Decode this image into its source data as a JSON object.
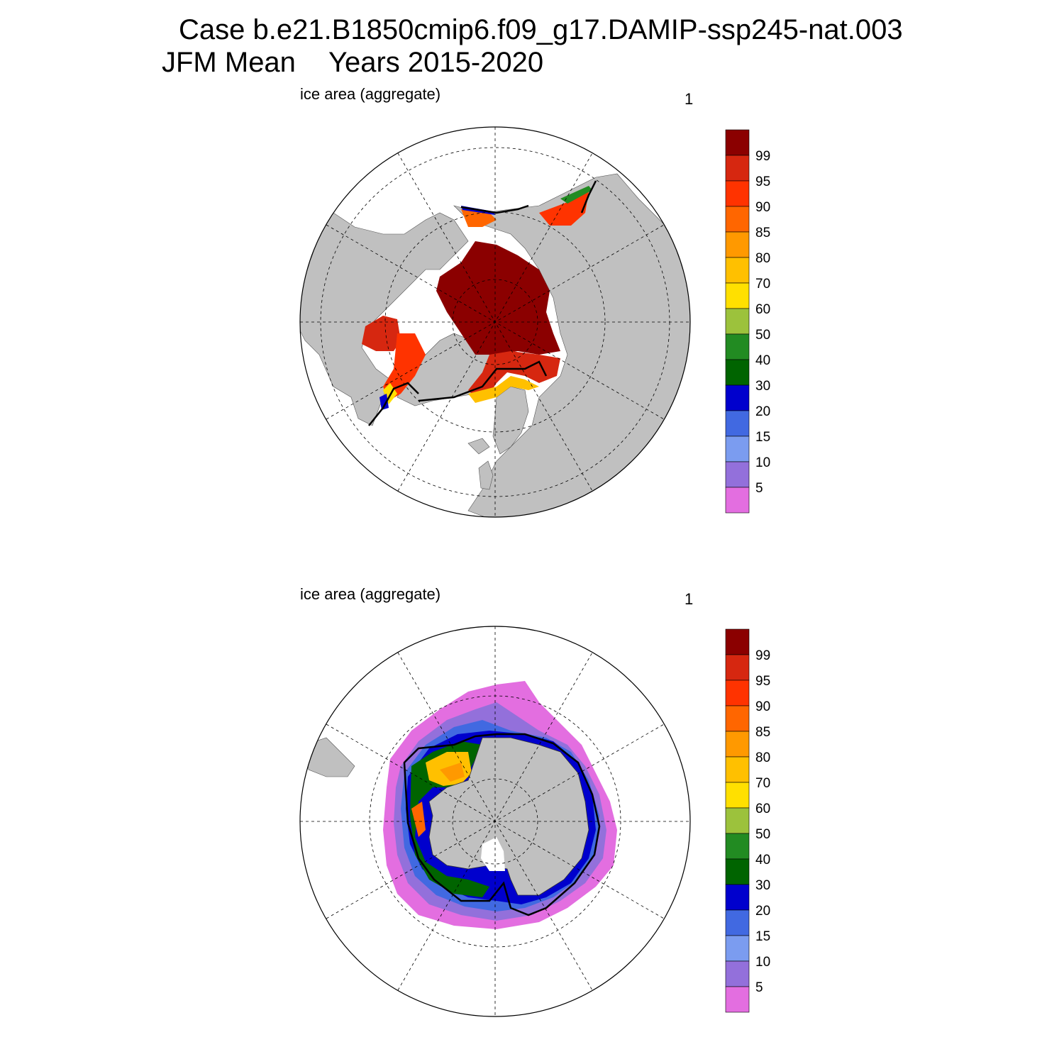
{
  "header": {
    "line1": "Case b.e21.B1850cmip6.f09_g17.DAMIP-ssp245-nat.003",
    "line2_period": "JFM Mean",
    "line2_years": "Years 2015-2020"
  },
  "panels": [
    {
      "id": "north",
      "variable_label": "ice area  (aggregate)",
      "right_label": "1"
    },
    {
      "id": "south",
      "variable_label": "ice area  (aggregate)",
      "right_label": "1"
    }
  ],
  "colorbar": {
    "labels": [
      "99",
      "95",
      "90",
      "85",
      "80",
      "70",
      "60",
      "50",
      "40",
      "30",
      "20",
      "15",
      "10",
      "5"
    ],
    "colors_top_to_bottom": [
      "#8b0000",
      "#d62710",
      "#ff3300",
      "#ff6600",
      "#ff9900",
      "#ffc000",
      "#ffe000",
      "#9cc23c",
      "#228b22",
      "#006400",
      "#0000cd",
      "#4169e1",
      "#7b9cf0",
      "#9370db",
      "#e36ee0"
    ]
  },
  "colors": {
    "land": "#c0c0c0",
    "ocean": "#ffffff",
    "ice_edge_contour": "#000000"
  }
}
